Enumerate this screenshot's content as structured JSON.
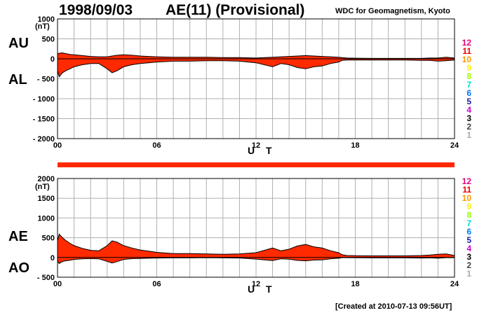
{
  "header": {
    "date": "1998/09/03",
    "title": "AE(11) (Provisional)",
    "institution": "WDC for Geomagnetism, Kyoto"
  },
  "footer": {
    "created": "[Created at 2010-07-13 09:56UT]"
  },
  "legend": {
    "stations": [
      "12",
      "11",
      "10",
      "9",
      "8",
      "7",
      "6",
      "5",
      "4",
      "3",
      "2",
      "1"
    ],
    "colors": [
      "#e6007e",
      "#e60000",
      "#ff9900",
      "#ffee00",
      "#99ff00",
      "#00e0d0",
      "#0077ff",
      "#1a1aa8",
      "#cc00cc",
      "#000000",
      "#444444",
      "#aaaaaa"
    ]
  },
  "colors": {
    "fill": "#ff2a00",
    "outline": "#000000",
    "grid": "#b0b0b0",
    "coverage_bar": "#ff2a00"
  },
  "chart_data": [
    {
      "type": "area",
      "panel": "top",
      "left_labels": [
        "AU",
        "AL"
      ],
      "ylabel": "(nT)",
      "xlabel": "U T",
      "ylim": [
        -2000,
        1000
      ],
      "yticks": [
        1000,
        500,
        0,
        -500,
        -1000,
        -1500,
        -2000
      ],
      "ytick_labels": [
        "1000",
        "500",
        "0",
        "- 500",
        "- 1000",
        "- 1500",
        "- 2000"
      ],
      "xlim": [
        0,
        24
      ],
      "xticks": [
        0,
        6,
        12,
        18,
        24
      ],
      "xtick_labels": [
        "00",
        "06",
        "12",
        "18",
        "24"
      ],
      "x": [
        0,
        0.1,
        0.3,
        0.5,
        0.75,
        1,
        1.5,
        2,
        2.5,
        3,
        3.3,
        3.6,
        4,
        4.5,
        5,
        5.5,
        6,
        7,
        8,
        9,
        10,
        11,
        12,
        12.5,
        13,
        13.5,
        14,
        14.5,
        15,
        15.5,
        16,
        16.5,
        17,
        17.2,
        17.5,
        18,
        19,
        20,
        21,
        22,
        22.5,
        23,
        23.5,
        24
      ],
      "series": [
        {
          "name": "AU",
          "values": [
            120,
            140,
            150,
            130,
            110,
            100,
            80,
            60,
            50,
            50,
            70,
            90,
            100,
            90,
            70,
            60,
            50,
            40,
            40,
            40,
            30,
            30,
            20,
            30,
            40,
            50,
            60,
            70,
            80,
            70,
            60,
            50,
            40,
            30,
            20,
            15,
            10,
            10,
            10,
            10,
            20,
            20,
            40,
            20
          ]
        },
        {
          "name": "AL",
          "values": [
            -300,
            -450,
            -350,
            -300,
            -250,
            -200,
            -150,
            -120,
            -120,
            -250,
            -350,
            -300,
            -200,
            -150,
            -120,
            -100,
            -80,
            -60,
            -60,
            -50,
            -50,
            -60,
            -100,
            -150,
            -200,
            -120,
            -150,
            -220,
            -250,
            -200,
            -180,
            -120,
            -80,
            -40,
            -30,
            -30,
            -30,
            -30,
            -30,
            -40,
            -40,
            -60,
            -50,
            -30
          ]
        }
      ]
    },
    {
      "type": "area",
      "panel": "bottom",
      "left_labels": [
        "AE",
        "AO"
      ],
      "ylabel": "(nT)",
      "xlabel": "U T",
      "ylim": [
        -500,
        2000
      ],
      "yticks": [
        2000,
        1500,
        1000,
        500,
        0,
        -500
      ],
      "ytick_labels": [
        "2000",
        "1500",
        "1000",
        "500",
        "0",
        "- 500"
      ],
      "xlim": [
        0,
        24
      ],
      "xticks": [
        0,
        6,
        12,
        18,
        24
      ],
      "xtick_labels": [
        "00",
        "06",
        "12",
        "18",
        "24"
      ],
      "x": [
        0,
        0.1,
        0.3,
        0.5,
        0.75,
        1,
        1.5,
        2,
        2.5,
        3,
        3.3,
        3.6,
        4,
        4.5,
        5,
        5.5,
        6,
        7,
        8,
        9,
        10,
        11,
        12,
        12.5,
        13,
        13.5,
        14,
        14.5,
        15,
        15.5,
        16,
        16.5,
        17,
        17.2,
        17.5,
        18,
        19,
        20,
        21,
        22,
        22.5,
        23,
        23.5,
        24
      ],
      "series": [
        {
          "name": "AE",
          "values": [
            420,
            590,
            500,
            430,
            360,
            300,
            230,
            180,
            170,
            300,
            420,
            390,
            300,
            240,
            190,
            160,
            130,
            100,
            100,
            90,
            80,
            90,
            120,
            180,
            240,
            170,
            210,
            290,
            330,
            270,
            240,
            170,
            120,
            70,
            50,
            45,
            40,
            40,
            40,
            50,
            60,
            80,
            90,
            50
          ]
        },
        {
          "name": "AO",
          "values": [
            -90,
            -155,
            -100,
            -85,
            -70,
            -50,
            -35,
            -30,
            -35,
            -100,
            -140,
            -105,
            -50,
            -30,
            -25,
            -20,
            -15,
            -10,
            -10,
            -5,
            -10,
            -15,
            -40,
            -60,
            -80,
            -35,
            -45,
            -75,
            -85,
            -65,
            -60,
            -35,
            -20,
            -5,
            -5,
            -7,
            -10,
            -10,
            -10,
            -15,
            -10,
            -20,
            -5,
            -5
          ]
        }
      ]
    }
  ]
}
